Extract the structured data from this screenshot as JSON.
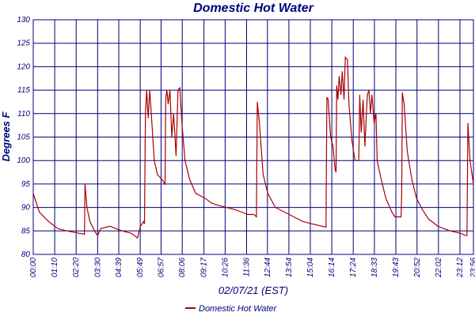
{
  "chart_data": {
    "type": "line",
    "title": "Domestic Hot Water",
    "ylabel": "Degrees F",
    "xlabel": "02/07/21 (EST)",
    "xlim": [
      0,
      1436
    ],
    "ylim": [
      80,
      130
    ],
    "yticks": [
      80,
      85,
      90,
      95,
      100,
      105,
      110,
      115,
      120,
      125,
      130
    ],
    "xticks": [
      {
        "value": 0,
        "label": "00:00"
      },
      {
        "value": 70,
        "label": "01:10"
      },
      {
        "value": 140,
        "label": "02:20"
      },
      {
        "value": 210,
        "label": "03:30"
      },
      {
        "value": 279,
        "label": "04:39"
      },
      {
        "value": 349,
        "label": "05:49"
      },
      {
        "value": 417,
        "label": "06:57"
      },
      {
        "value": 486,
        "label": "08:06"
      },
      {
        "value": 557,
        "label": "09:17"
      },
      {
        "value": 626,
        "label": "10:26"
      },
      {
        "value": 696,
        "label": "11:36"
      },
      {
        "value": 764,
        "label": "12:44"
      },
      {
        "value": 834,
        "label": "13:54"
      },
      {
        "value": 904,
        "label": "15:04"
      },
      {
        "value": 974,
        "label": "16:14"
      },
      {
        "value": 1044,
        "label": "17:24"
      },
      {
        "value": 1113,
        "label": "18:33"
      },
      {
        "value": 1183,
        "label": "19:43"
      },
      {
        "value": 1252,
        "label": "20:52"
      },
      {
        "value": 1322,
        "label": "22:02"
      },
      {
        "value": 1392,
        "label": "23:12"
      },
      {
        "value": 1436,
        "label": "23:56"
      }
    ],
    "grid": true,
    "legend": "bottom",
    "x": [
      0,
      20,
      50,
      80,
      110,
      150,
      167,
      169,
      175,
      185,
      200,
      210,
      220,
      250,
      290,
      320,
      340,
      350,
      360,
      363,
      366,
      370,
      375,
      380,
      385,
      395,
      405,
      420,
      430,
      432,
      436,
      440,
      446,
      452,
      458,
      466,
      472,
      478,
      485,
      495,
      510,
      530,
      560,
      580,
      600,
      630,
      660,
      680,
      700,
      720,
      728,
      731,
      738,
      750,
      765,
      790,
      820,
      850,
      880,
      910,
      955,
      958,
      962,
      970,
      978,
      985,
      988,
      990,
      994,
      998,
      1004,
      1008,
      1014,
      1018,
      1025,
      1030,
      1040,
      1050,
      1062,
      1065,
      1070,
      1076,
      1082,
      1090,
      1095,
      1100,
      1105,
      1112,
      1118,
      1122,
      1135,
      1150,
      1170,
      1180,
      1200,
      1202,
      1204,
      1210,
      1220,
      1235,
      1250,
      1270,
      1290,
      1320,
      1360,
      1395,
      1410,
      1415,
      1418,
      1425,
      1436
    ],
    "series": [
      {
        "name": "Domestic Hot Water",
        "color": "#aa0000",
        "values": [
          93,
          89,
          87,
          85.5,
          85,
          84.5,
          84.3,
          95,
          90,
          87,
          85,
          84,
          85.5,
          86,
          85,
          84.5,
          83.5,
          86,
          87,
          86.5,
          110,
          115,
          109,
          115,
          110,
          100,
          97,
          96,
          95,
          113,
          115,
          112,
          115,
          105,
          110,
          101,
          115,
          115.5,
          108,
          100,
          96,
          93,
          92,
          91,
          90.5,
          90,
          89.5,
          89,
          88.5,
          88.5,
          88,
          112.5,
          108,
          97,
          93,
          90,
          89,
          88,
          87,
          86.5,
          85.8,
          113.5,
          113,
          105,
          103,
          98,
          97.5,
          116,
          113,
          118,
          114,
          119,
          113,
          122,
          121.5,
          112,
          104,
          100,
          100,
          114,
          106,
          113,
          103,
          114,
          115,
          110,
          114,
          108,
          110,
          100,
          96,
          92,
          89,
          88,
          88,
          93,
          114.5,
          112,
          102,
          96,
          92,
          89.5,
          87.5,
          86,
          85,
          84.5,
          84,
          84,
          108,
          100,
          95
        ]
      }
    ]
  }
}
